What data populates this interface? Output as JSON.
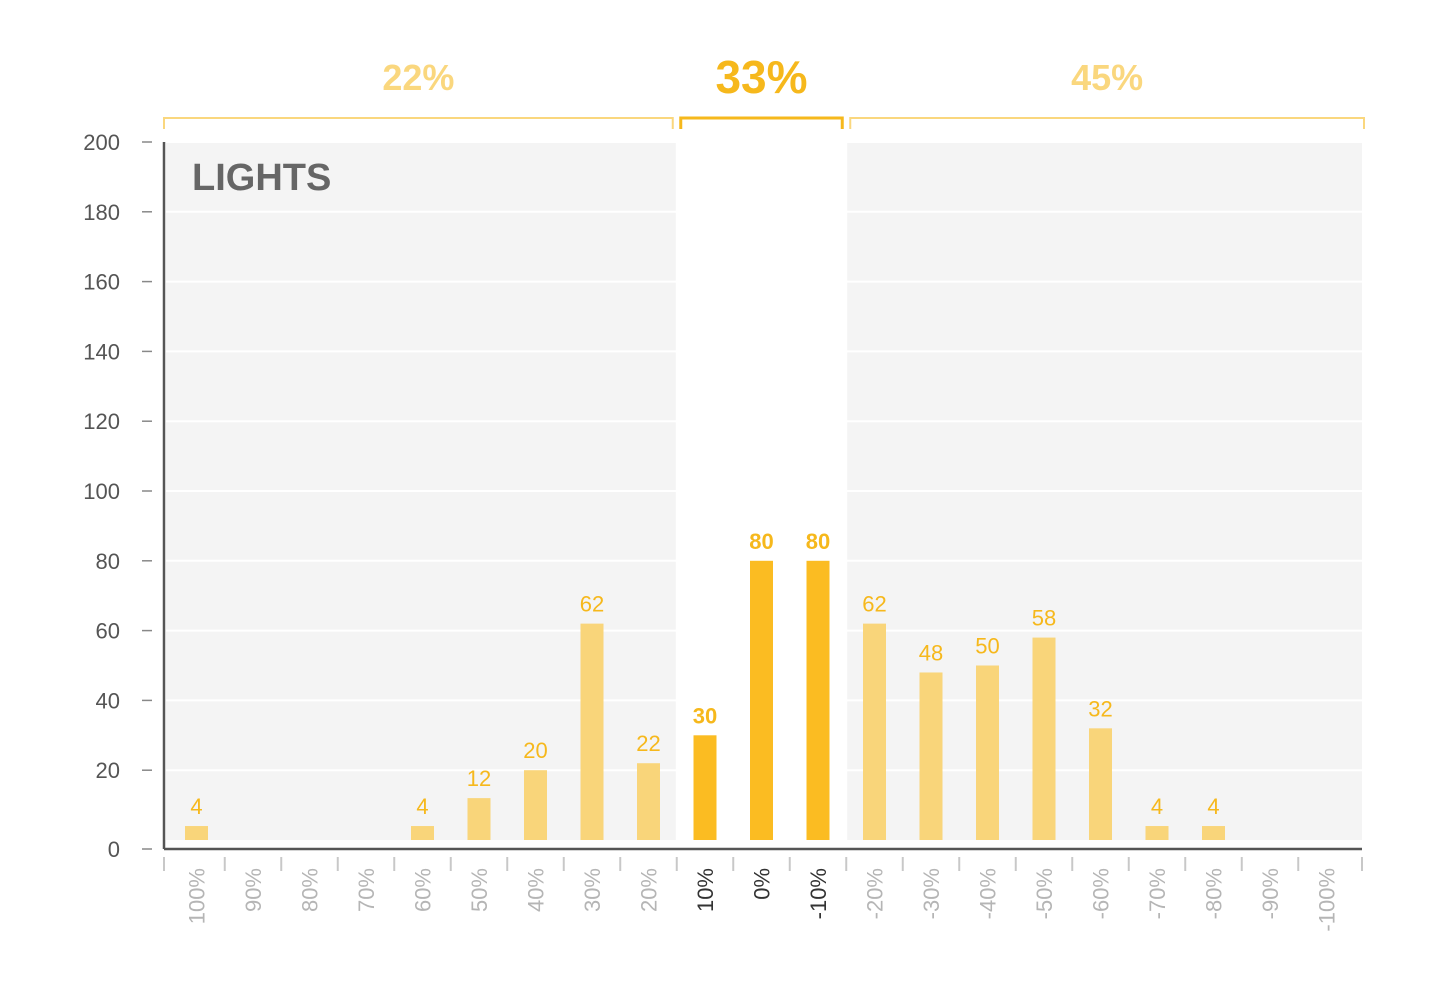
{
  "chart_data": {
    "type": "bar",
    "title": "LIGHTS",
    "xlabel": "",
    "ylabel": "",
    "ylim": [
      0,
      200
    ],
    "yticks": [
      0,
      20,
      40,
      60,
      80,
      100,
      120,
      140,
      160,
      180,
      200
    ],
    "categories": [
      "100%",
      "90%",
      "80%",
      "70%",
      "60%",
      "50%",
      "40%",
      "30%",
      "20%",
      "10%",
      "0%",
      "-10%",
      "-20%",
      "-30%",
      "-40%",
      "-50%",
      "-60%",
      "-70%",
      "-80%",
      "-90%",
      "-100%"
    ],
    "values": [
      4,
      0,
      0,
      0,
      4,
      12,
      20,
      62,
      22,
      30,
      80,
      80,
      62,
      48,
      50,
      58,
      32,
      4,
      4,
      0,
      0
    ],
    "data_labels": [
      "4",
      "",
      "",
      "",
      "4",
      "12",
      "20",
      "62",
      "22",
      "30",
      "80",
      "80",
      "62",
      "48",
      "50",
      "58",
      "32",
      "4",
      "4",
      "",
      ""
    ],
    "grid": true,
    "legend": "none",
    "groups": [
      {
        "label": "22%",
        "start": 0,
        "end": 8,
        "highlight": false
      },
      {
        "label": "33%",
        "start": 9,
        "end": 11,
        "highlight": true
      },
      {
        "label": "45%",
        "start": 12,
        "end": 20,
        "highlight": false
      }
    ],
    "colors": {
      "bar": "#f9d57a",
      "bar_highlight": "#fbbc22",
      "label": "#f6b81c",
      "group_label": "#fad77e",
      "group_label_highlight": "#f6b81c",
      "tick_muted": "#b5b5b5",
      "tick_highlight": "#333333",
      "panel": "#f4f4f4",
      "grid": "#ffffff",
      "axis": "#555555"
    }
  }
}
